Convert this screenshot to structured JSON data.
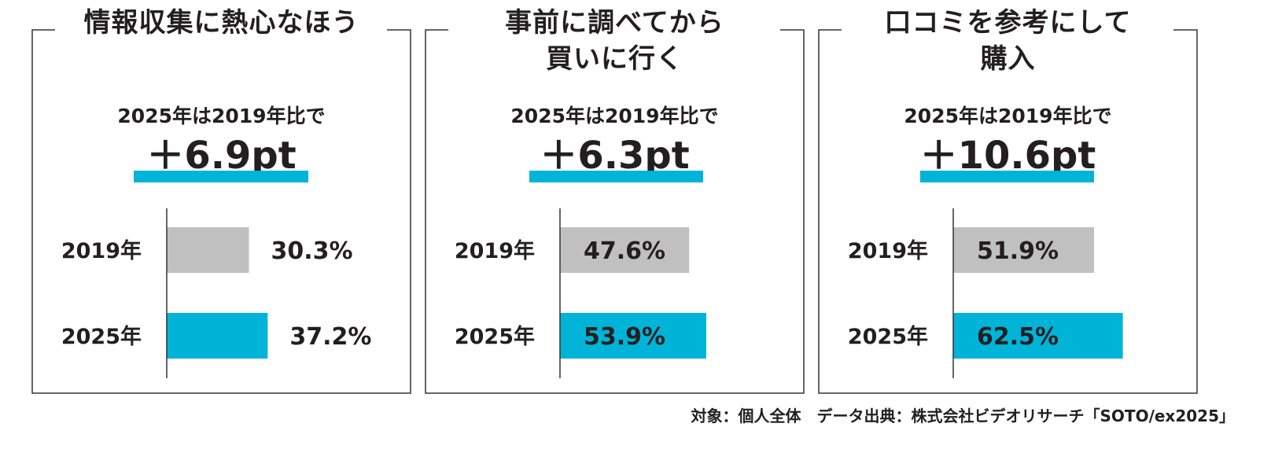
{
  "panels": [
    {
      "title": "情報収集に熱心なほう",
      "compare_text": "2025年は2019年比で",
      "delta_text": "＋6.9pt"
    },
    {
      "title": "事前に調べてから\n買いに行く",
      "compare_text": "2025年は2019年比で",
      "delta_text": "＋6.3pt"
    },
    {
      "title": "口コミを参考にして\n購入",
      "compare_text": "2025年は2019年比で",
      "delta_text": "＋10.6pt"
    }
  ],
  "chart_data": [
    {
      "type": "bar",
      "orientation": "horizontal",
      "categories": [
        "2019年",
        "2025年"
      ],
      "values": [
        30.3,
        37.2
      ],
      "value_labels": [
        "30.3%",
        "37.2%"
      ],
      "colors": [
        "#c0c0c0",
        "#00b4d8"
      ],
      "xlim": [
        0,
        100
      ],
      "label_position": "outside"
    },
    {
      "type": "bar",
      "orientation": "horizontal",
      "categories": [
        "2019年",
        "2025年"
      ],
      "values": [
        47.6,
        53.9
      ],
      "value_labels": [
        "47.6%",
        "53.9%"
      ],
      "colors": [
        "#c0c0c0",
        "#00b4d8"
      ],
      "xlim": [
        0,
        100
      ],
      "label_position": "inside"
    },
    {
      "type": "bar",
      "orientation": "horizontal",
      "categories": [
        "2019年",
        "2025年"
      ],
      "values": [
        51.9,
        62.5
      ],
      "value_labels": [
        "51.9%",
        "62.5%"
      ],
      "colors": [
        "#c0c0c0",
        "#00b4d8"
      ],
      "xlim": [
        0,
        100
      ],
      "label_position": "inside"
    }
  ],
  "footer": "対象：個人全体　データ出典：株式会社ビデオリサーチ「SOTO/ex2025」",
  "colors": {
    "accent": "#00b4d8",
    "bar_2019": "#c0c0c0",
    "frame": "#333333",
    "text": "#231f20"
  }
}
